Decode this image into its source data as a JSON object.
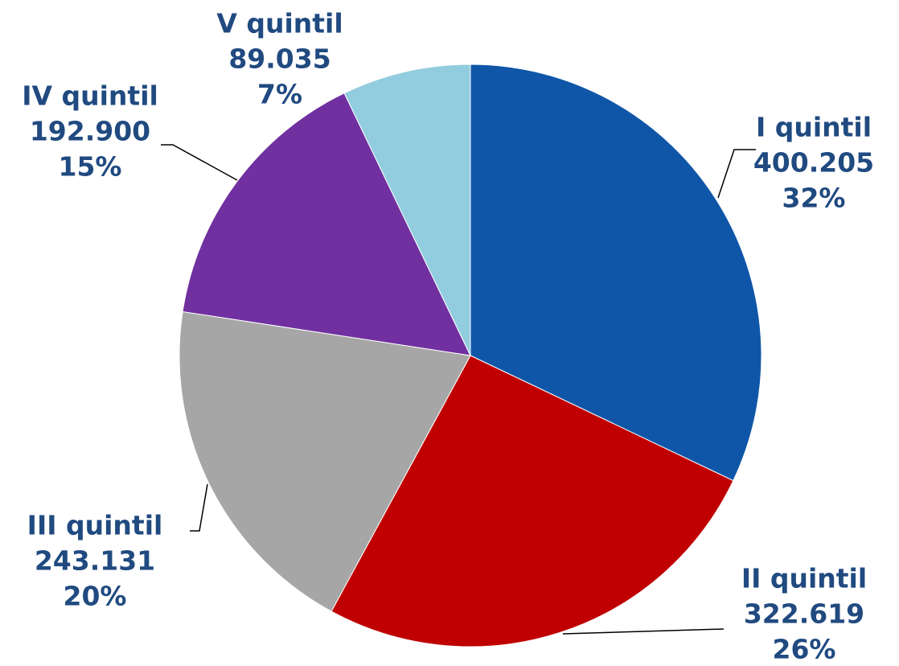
{
  "chart_data": {
    "type": "pie",
    "categories": [
      "I quintil",
      "II quintil",
      "III quintil",
      "IV quintil",
      "V quintil"
    ],
    "values": [
      400205,
      322619,
      243131,
      192900,
      89035
    ],
    "value_labels": [
      "400.205",
      "322.619",
      "243.131",
      "192.900",
      "89.035"
    ],
    "percent_labels": [
      "32%",
      "26%",
      "20%",
      "15%",
      "7%"
    ],
    "colors": [
      "#0f56a8",
      "#c00000",
      "#a6a6a6",
      "#7030a0",
      "#92cddf"
    ]
  }
}
